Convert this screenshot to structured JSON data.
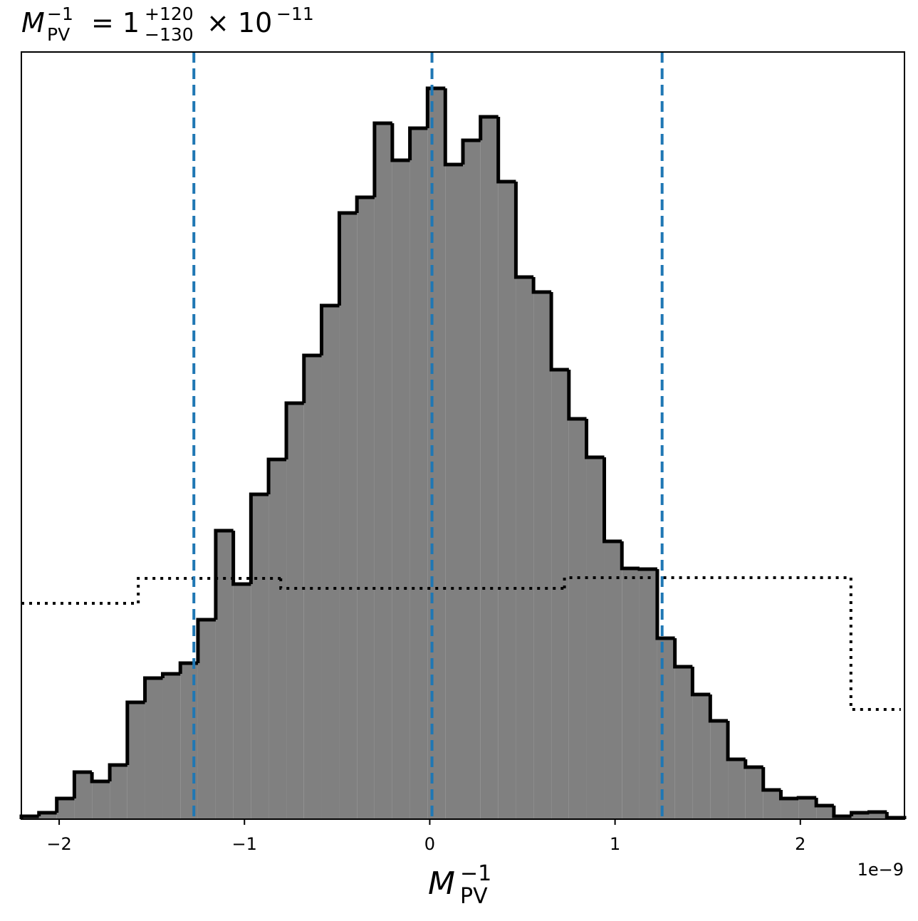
{
  "chart_data": {
    "type": "histogram",
    "title_parts": {
      "symbol": "M",
      "sub": "PV",
      "sup": "−1",
      "equals": "= 1",
      "upper": "+120",
      "lower": "−130",
      "times": "× 10",
      "exponent": "−11"
    },
    "xlabel_parts": {
      "symbol": "M",
      "sub": "PV",
      "sup": "−1"
    },
    "x_offset_label": "1e−9",
    "xlim": [
      -2.204,
      2.562
    ],
    "ylim": [
      0,
      1077
    ],
    "xticks": [
      {
        "value": -2,
        "label": "−2"
      },
      {
        "value": -1,
        "label": "−1"
      },
      0,
      1,
      2
    ],
    "bins": [
      -2.204,
      -2.109,
      -2.013,
      -1.918,
      -1.823,
      -1.727,
      -1.632,
      -1.537,
      -1.441,
      -1.346,
      -1.251,
      -1.155,
      -1.06,
      -0.965,
      -0.87,
      -0.774,
      -0.679,
      -0.584,
      -0.488,
      -0.393,
      -0.298,
      -0.202,
      -0.107,
      -0.012,
      0.084,
      0.179,
      0.274,
      0.37,
      0.465,
      0.56,
      0.656,
      0.751,
      0.846,
      0.942,
      1.037,
      1.132,
      1.228,
      1.323,
      1.418,
      1.514,
      1.609,
      1.704,
      1.8,
      1.895,
      1.99,
      2.086,
      2.181,
      2.276,
      2.372,
      2.467,
      2.562
    ],
    "values": [
      4,
      9,
      29,
      66,
      53,
      76,
      164,
      198,
      204,
      219,
      280,
      405,
      330,
      456,
      505,
      584,
      651,
      721,
      851,
      873,
      977,
      925,
      970,
      1026,
      919,
      953,
      986,
      895,
      761,
      740,
      631,
      562,
      508,
      390,
      352,
      351,
      254,
      214,
      175,
      138,
      84,
      73,
      41,
      29,
      30,
      19,
      4,
      9,
      10,
      2
    ],
    "color": "#808080",
    "edge_color": "#000000",
    "prior": {
      "bins": [
        -2.204,
        -1.573,
        -0.804,
        0.727,
        2.273,
        2.542
      ],
      "values": [
        303,
        338,
        324,
        339,
        154
      ],
      "color": "#000000"
    },
    "vlines": {
      "values": [
        -1.273,
        0.012,
        1.254
      ],
      "color": "#1f77b4"
    }
  }
}
